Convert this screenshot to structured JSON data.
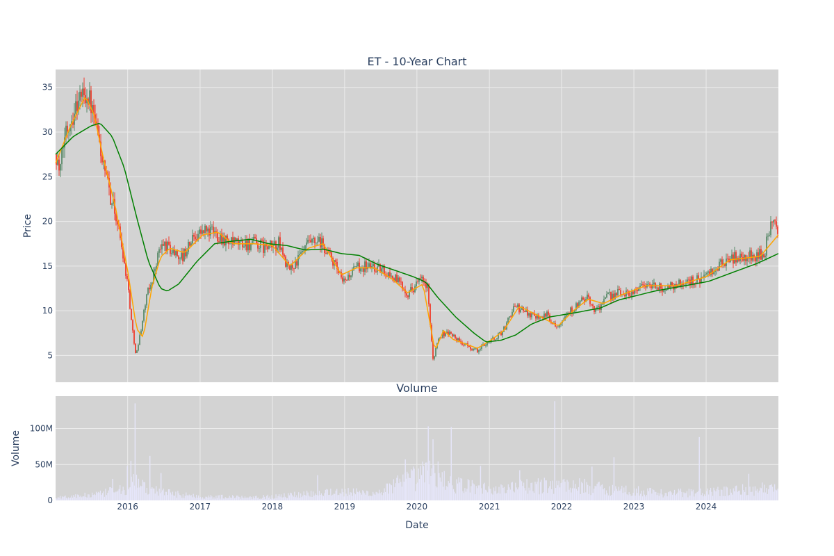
{
  "chart_data": [
    {
      "type": "candlestick",
      "title": "ET - 10-Year Chart",
      "ylabel": "Price",
      "ylim": [
        2,
        37
      ],
      "yticks": [
        5,
        10,
        15,
        20,
        25,
        30,
        35
      ],
      "xlim": [
        "2015-01-02",
        "2024-12-31"
      ],
      "xticks": [
        "2016",
        "2017",
        "2018",
        "2019",
        "2020",
        "2021",
        "2022",
        "2023",
        "2024"
      ],
      "grid": true,
      "background": "#d3d3d3",
      "colors": {
        "up": "#5a8a6a",
        "down": "#ef3b2c",
        "ma_short": "#ffa500",
        "ma_long": "#008000"
      },
      "series": [
        {
          "kind": "ohlc",
          "key_points": [
            [
              "2015-01-02",
              27.5
            ],
            [
              "2015-01-20",
              25.2
            ],
            [
              "2015-02-15",
              30.0
            ],
            [
              "2015-03-15",
              31.5
            ],
            [
              "2015-04-20",
              33.5
            ],
            [
              "2015-05-20",
              34.5
            ],
            [
              "2015-06-15",
              34.0
            ],
            [
              "2015-07-10",
              31.5
            ],
            [
              "2015-08-10",
              28.5
            ],
            [
              "2015-09-01",
              25.5
            ],
            [
              "2015-10-01",
              23.0
            ],
            [
              "2015-11-01",
              20.5
            ],
            [
              "2015-12-01",
              17.0
            ],
            [
              "2016-01-01",
              12.5
            ],
            [
              "2016-01-20",
              8.0
            ],
            [
              "2016-02-10",
              5.0
            ],
            [
              "2016-03-01",
              7.5
            ],
            [
              "2016-04-01",
              11.5
            ],
            [
              "2016-05-01",
              13.5
            ],
            [
              "2016-06-01",
              16.5
            ],
            [
              "2016-07-01",
              17.5
            ],
            [
              "2016-08-15",
              16.5
            ],
            [
              "2016-10-01",
              16.0
            ],
            [
              "2016-12-01",
              18.5
            ],
            [
              "2017-02-01",
              19.0
            ],
            [
              "2017-04-01",
              18.5
            ],
            [
              "2017-06-01",
              17.5
            ],
            [
              "2017-08-01",
              17.5
            ],
            [
              "2017-10-01",
              17.5
            ],
            [
              "2017-12-01",
              17.0
            ],
            [
              "2018-02-01",
              17.5
            ],
            [
              "2018-03-20",
              14.5
            ],
            [
              "2018-05-01",
              15.5
            ],
            [
              "2018-07-01",
              17.5
            ],
            [
              "2018-09-01",
              17.5
            ],
            [
              "2018-11-01",
              15.5
            ],
            [
              "2018-12-20",
              13.0
            ],
            [
              "2019-01-20",
              14.0
            ],
            [
              "2019-03-15",
              15.0
            ],
            [
              "2019-05-15",
              15.0
            ],
            [
              "2019-07-15",
              14.5
            ],
            [
              "2019-09-15",
              13.5
            ],
            [
              "2019-11-15",
              12.0
            ],
            [
              "2020-01-15",
              13.5
            ],
            [
              "2020-02-20",
              12.5
            ],
            [
              "2020-03-18",
              4.5
            ],
            [
              "2020-04-15",
              7.0
            ],
            [
              "2020-05-15",
              7.5
            ],
            [
              "2020-06-15",
              7.5
            ],
            [
              "2020-08-01",
              6.5
            ],
            [
              "2020-10-01",
              5.8
            ],
            [
              "2020-11-01",
              5.5
            ],
            [
              "2020-12-15",
              6.5
            ],
            [
              "2021-02-01",
              7.0
            ],
            [
              "2021-03-15",
              8.0
            ],
            [
              "2021-05-01",
              10.5
            ],
            [
              "2021-06-15",
              10.0
            ],
            [
              "2021-08-15",
              9.5
            ],
            [
              "2021-10-15",
              9.5
            ],
            [
              "2021-12-01",
              8.3
            ],
            [
              "2022-01-15",
              9.5
            ],
            [
              "2022-03-15",
              10.5
            ],
            [
              "2022-05-01",
              11.5
            ],
            [
              "2022-06-20",
              10.0
            ],
            [
              "2022-08-15",
              11.5
            ],
            [
              "2022-10-15",
              12.0
            ],
            [
              "2022-12-15",
              12.0
            ],
            [
              "2023-02-15",
              13.0
            ],
            [
              "2023-05-15",
              12.5
            ],
            [
              "2023-08-15",
              13.0
            ],
            [
              "2023-11-15",
              13.5
            ],
            [
              "2024-01-15",
              14.0
            ],
            [
              "2024-04-15",
              15.8
            ],
            [
              "2024-07-15",
              16.0
            ],
            [
              "2024-10-15",
              16.3
            ],
            [
              "2024-11-20",
              19.5
            ],
            [
              "2024-12-31",
              19.3
            ]
          ]
        },
        {
          "kind": "ma_short",
          "key_points": [
            [
              "2015-01-02",
              26.5
            ],
            [
              "2015-03-15",
              30.5
            ],
            [
              "2015-06-01",
              34.0
            ],
            [
              "2015-07-15",
              32.0
            ],
            [
              "2015-09-01",
              27.0
            ],
            [
              "2015-11-01",
              21.5
            ],
            [
              "2016-01-01",
              14.5
            ],
            [
              "2016-02-15",
              8.0
            ],
            [
              "2016-03-20",
              7.0
            ],
            [
              "2016-05-01",
              12.5
            ],
            [
              "2016-06-15",
              16.0
            ],
            [
              "2016-08-01",
              17.0
            ],
            [
              "2016-10-15",
              16.5
            ],
            [
              "2017-01-15",
              18.5
            ],
            [
              "2017-04-01",
              18.8
            ],
            [
              "2017-06-15",
              17.5
            ],
            [
              "2017-10-01",
              17.5
            ],
            [
              "2018-01-01",
              17.3
            ],
            [
              "2018-04-01",
              15.0
            ],
            [
              "2018-07-01",
              17.0
            ],
            [
              "2018-09-15",
              17.5
            ],
            [
              "2018-12-15",
              14.0
            ],
            [
              "2019-03-01",
              14.8
            ],
            [
              "2019-06-01",
              14.8
            ],
            [
              "2019-09-01",
              13.5
            ],
            [
              "2019-11-15",
              12.0
            ],
            [
              "2020-02-01",
              13.0
            ],
            [
              "2020-04-01",
              5.5
            ],
            [
              "2020-05-15",
              7.8
            ],
            [
              "2020-07-01",
              6.8
            ],
            [
              "2020-11-01",
              5.8
            ],
            [
              "2021-01-15",
              6.8
            ],
            [
              "2021-03-15",
              7.8
            ],
            [
              "2021-06-01",
              10.5
            ],
            [
              "2021-09-01",
              9.5
            ],
            [
              "2021-12-15",
              8.3
            ],
            [
              "2022-03-01",
              10.0
            ],
            [
              "2022-05-15",
              11.3
            ],
            [
              "2022-08-01",
              10.8
            ],
            [
              "2022-11-01",
              11.8
            ],
            [
              "2023-03-01",
              12.8
            ],
            [
              "2023-08-01",
              12.8
            ],
            [
              "2024-01-01",
              13.8
            ],
            [
              "2024-05-01",
              15.7
            ],
            [
              "2024-10-01",
              16.1
            ],
            [
              "2024-12-31",
              18.5
            ]
          ]
        },
        {
          "kind": "ma_long",
          "key_points": [
            [
              "2015-01-02",
              27.5
            ],
            [
              "2015-04-01",
              29.5
            ],
            [
              "2015-07-01",
              30.7
            ],
            [
              "2015-08-15",
              31.0
            ],
            [
              "2015-10-15",
              29.5
            ],
            [
              "2015-12-15",
              26.0
            ],
            [
              "2016-02-15",
              20.5
            ],
            [
              "2016-04-15",
              15.5
            ],
            [
              "2016-06-15",
              12.5
            ],
            [
              "2016-07-20",
              12.2
            ],
            [
              "2016-09-15",
              13.0
            ],
            [
              "2016-12-15",
              15.5
            ],
            [
              "2017-03-15",
              17.5
            ],
            [
              "2017-06-15",
              17.8
            ],
            [
              "2017-09-15",
              18.0
            ],
            [
              "2017-12-15",
              17.5
            ],
            [
              "2018-03-15",
              17.3
            ],
            [
              "2018-06-15",
              16.8
            ],
            [
              "2018-09-15",
              16.9
            ],
            [
              "2018-12-15",
              16.4
            ],
            [
              "2019-03-15",
              16.2
            ],
            [
              "2019-06-15",
              15.2
            ],
            [
              "2019-09-15",
              14.5
            ],
            [
              "2019-12-15",
              13.8
            ],
            [
              "2020-02-15",
              13.2
            ],
            [
              "2020-04-15",
              11.5
            ],
            [
              "2020-07-15",
              9.3
            ],
            [
              "2020-10-15",
              7.5
            ],
            [
              "2020-12-15",
              6.5
            ],
            [
              "2021-03-01",
              6.7
            ],
            [
              "2021-05-15",
              7.3
            ],
            [
              "2021-08-01",
              8.5
            ],
            [
              "2021-11-01",
              9.3
            ],
            [
              "2022-03-15",
              9.8
            ],
            [
              "2022-07-15",
              10.3
            ],
            [
              "2022-10-15",
              11.2
            ],
            [
              "2023-01-15",
              11.7
            ],
            [
              "2023-04-15",
              12.2
            ],
            [
              "2023-09-15",
              12.8
            ],
            [
              "2024-01-15",
              13.3
            ],
            [
              "2024-05-15",
              14.3
            ],
            [
              "2024-09-15",
              15.3
            ],
            [
              "2024-12-31",
              16.4
            ]
          ]
        }
      ]
    },
    {
      "type": "bar",
      "title": "Volume",
      "xlabel": "Date",
      "ylabel": "Volume",
      "ylim": [
        0,
        145000000
      ],
      "yticks": [
        {
          "value": 0,
          "label": "0"
        },
        {
          "value": 50000000,
          "label": "50M"
        },
        {
          "value": 100000000,
          "label": "100M"
        }
      ],
      "xlim": [
        "2015-01-02",
        "2024-12-31"
      ],
      "xticks": [
        "2016",
        "2017",
        "2018",
        "2019",
        "2020",
        "2021",
        "2022",
        "2023",
        "2024"
      ],
      "grid": true,
      "background": "#d3d3d3",
      "colors": {
        "bar": "#e6e6fa"
      },
      "series": [
        {
          "kind": "baseline",
          "key_points": [
            [
              "2015-01-02",
              4000000
            ],
            [
              "2015-08-01",
              8000000
            ],
            [
              "2015-12-01",
              15000000
            ],
            [
              "2016-02-01",
              25000000
            ],
            [
              "2016-06-01",
              12000000
            ],
            [
              "2017-01-01",
              5000000
            ],
            [
              "2018-01-01",
              5000000
            ],
            [
              "2018-10-01",
              12000000
            ],
            [
              "2019-06-01",
              10000000
            ],
            [
              "2020-03-15",
              40000000
            ],
            [
              "2020-07-01",
              22000000
            ],
            [
              "2021-01-01",
              15000000
            ],
            [
              "2022-01-01",
              22000000
            ],
            [
              "2022-10-01",
              15000000
            ],
            [
              "2023-06-01",
              10000000
            ],
            [
              "2024-01-01",
              11000000
            ],
            [
              "2024-10-01",
              16000000
            ],
            [
              "2024-12-31",
              14000000
            ]
          ]
        },
        {
          "kind": "spikes",
          "points": [
            [
              "2015-10-15",
              30000000
            ],
            [
              "2015-12-28",
              48000000
            ],
            [
              "2016-01-15",
              55000000
            ],
            [
              "2016-02-05",
              135000000
            ],
            [
              "2016-04-20",
              62000000
            ],
            [
              "2016-06-15",
              38000000
            ],
            [
              "2018-08-15",
              35000000
            ],
            [
              "2019-11-01",
              57000000
            ],
            [
              "2020-02-25",
              103000000
            ],
            [
              "2020-03-20",
              85000000
            ],
            [
              "2020-06-20",
              102000000
            ],
            [
              "2020-11-15",
              48000000
            ],
            [
              "2021-06-01",
              42000000
            ],
            [
              "2021-11-25",
              138000000
            ],
            [
              "2022-06-01",
              47000000
            ],
            [
              "2022-09-20",
              60000000
            ],
            [
              "2023-11-25",
              88000000
            ],
            [
              "2024-08-01",
              37000000
            ]
          ]
        }
      ]
    }
  ]
}
